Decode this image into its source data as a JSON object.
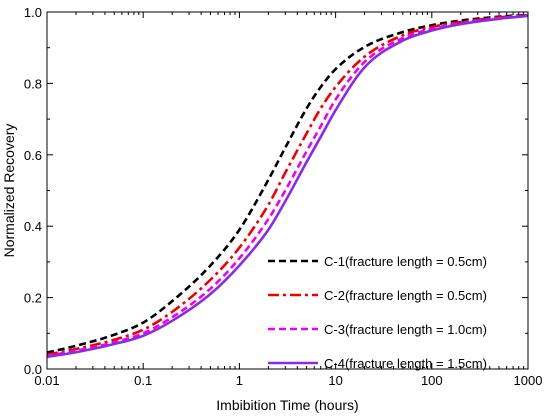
{
  "chart_data": {
    "type": "line",
    "title": "",
    "xlabel": "Imbibition Time (hours)",
    "ylabel": "Normalized Recovery",
    "xscale": "log",
    "xlim": [
      0.01,
      1000
    ],
    "ylim": [
      0.0,
      1.0
    ],
    "xticks": [
      0.01,
      0.1,
      1,
      10,
      100,
      1000
    ],
    "xtick_labels": [
      "0.01",
      "0.1",
      "1",
      "10",
      "100",
      "1000"
    ],
    "yticks": [
      0.0,
      0.2,
      0.4,
      0.6,
      0.8,
      1.0
    ],
    "ytick_labels": [
      "0.0",
      "0.2",
      "0.4",
      "0.6",
      "0.8",
      "1.0"
    ],
    "grid": false,
    "legend_position": "lower-right",
    "series": [
      {
        "name": "C-1(fracture length = 0.5cm)",
        "color": "#000000",
        "style": "dashed",
        "x": [
          0.01,
          0.02,
          0.05,
          0.1,
          0.2,
          0.5,
          1,
          2,
          3,
          5,
          7,
          10,
          20,
          50,
          100,
          200,
          500,
          1000
        ],
        "y": [
          0.046,
          0.065,
          0.096,
          0.13,
          0.19,
          0.29,
          0.39,
          0.53,
          0.62,
          0.73,
          0.79,
          0.84,
          0.902,
          0.944,
          0.963,
          0.976,
          0.987,
          0.992
        ]
      },
      {
        "name": "C-2(fracture length = 0.5cm)",
        "color": "#ee0000",
        "style": "dashdot",
        "x": [
          0.01,
          0.02,
          0.05,
          0.1,
          0.2,
          0.5,
          1,
          2,
          3,
          5,
          7,
          10,
          20,
          50,
          100,
          200,
          500,
          1000
        ],
        "y": [
          0.04,
          0.056,
          0.082,
          0.11,
          0.16,
          0.25,
          0.34,
          0.46,
          0.55,
          0.66,
          0.73,
          0.79,
          0.875,
          0.935,
          0.958,
          0.972,
          0.985,
          0.991
        ]
      },
      {
        "name": "C-3(fracture length = 1.0cm)",
        "color": "#ee00ee",
        "style": "dashed",
        "x": [
          0.01,
          0.02,
          0.05,
          0.1,
          0.2,
          0.5,
          1,
          2,
          3,
          5,
          7,
          10,
          20,
          50,
          100,
          200,
          500,
          1000
        ],
        "y": [
          0.037,
          0.051,
          0.075,
          0.1,
          0.145,
          0.225,
          0.31,
          0.42,
          0.5,
          0.61,
          0.68,
          0.755,
          0.86,
          0.927,
          0.953,
          0.969,
          0.983,
          0.99
        ]
      },
      {
        "name": "C-4(fracture length = 1.5cm)",
        "color": "#8a2be2",
        "style": "solid",
        "x": [
          0.01,
          0.02,
          0.05,
          0.1,
          0.2,
          0.5,
          1,
          2,
          3,
          5,
          7,
          10,
          20,
          50,
          100,
          200,
          500,
          1000
        ],
        "y": [
          0.034,
          0.047,
          0.07,
          0.093,
          0.135,
          0.21,
          0.29,
          0.39,
          0.47,
          0.58,
          0.65,
          0.725,
          0.845,
          0.92,
          0.948,
          0.966,
          0.981,
          0.989
        ]
      }
    ]
  }
}
